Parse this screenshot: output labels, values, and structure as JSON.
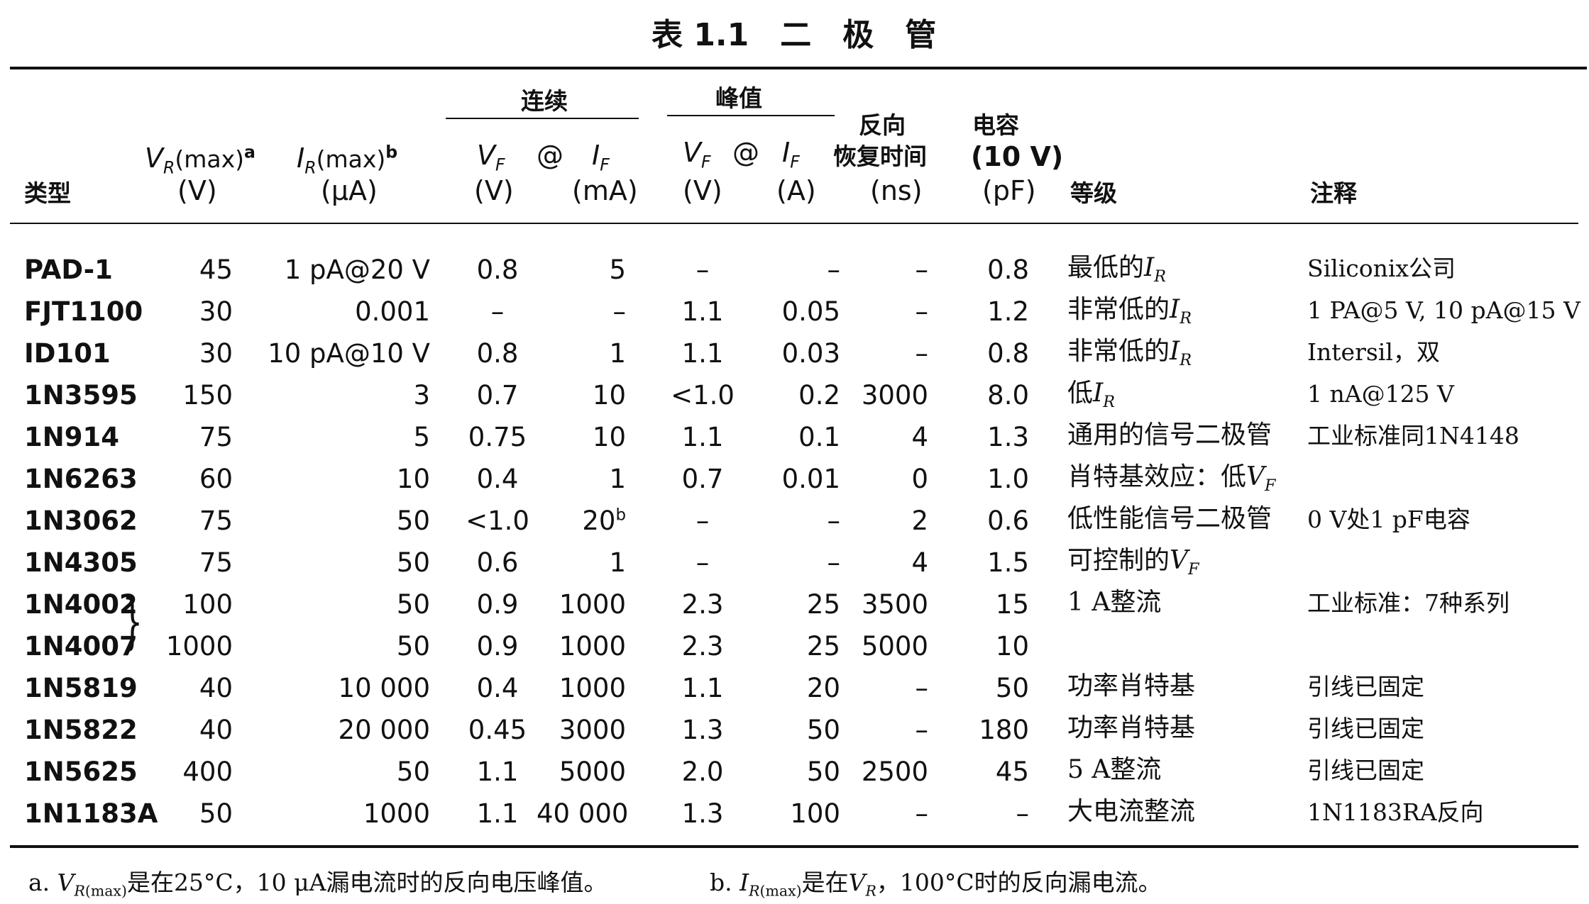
{
  "title": "表 1.1　二　极　管",
  "group_headers": {
    "continuous": "连续",
    "peak": "峰值"
  },
  "col_headers": {
    "type": "类型",
    "vr_unit": "(V)",
    "ir_unit": "(μA)",
    "vf_unit": "(V)",
    "if_unit": "(mA)",
    "at": "@",
    "pk_vf_unit": "(V)",
    "pk_if_unit": "(A)",
    "trr_line1": "反向",
    "trr_line2": "恢复时间",
    "trr_unit": "(ns)",
    "cap_line1": "电容",
    "cap_line2": "(10 V)",
    "cap_unit": "(pF)",
    "grade": "等级",
    "notes": "注释"
  },
  "rows": [
    {
      "type": "PAD-1",
      "vr": "45",
      "ir": "1 pA@20 V",
      "vf": "0.8",
      "if": "5",
      "pvf": "–",
      "pif": "–",
      "trr": "–",
      "cap": "0.8",
      "grade": "最低的I",
      "grade_sub": "R",
      "note": "Siliconix公司"
    },
    {
      "type": "FJT1100",
      "vr": "30",
      "ir": "0.001",
      "vf": "–",
      "if": "–",
      "pvf": "1.1",
      "pif": "0.05",
      "trr": "–",
      "cap": "1.2",
      "grade": "非常低的I",
      "grade_sub": "R",
      "note": "1 PA@5 V, 10 pA@15 V"
    },
    {
      "type": "ID101",
      "vr": "30",
      "ir": "10 pA@10 V",
      "vf": "0.8",
      "if": "1",
      "pvf": "1.1",
      "pif": "0.03",
      "trr": "–",
      "cap": "0.8",
      "grade": "非常低的I",
      "grade_sub": "R",
      "note": "Intersil，双"
    },
    {
      "type": "1N3595",
      "vr": "150",
      "ir": "3",
      "vf": "0.7",
      "if": "10",
      "pvf": "<1.0",
      "pif": "0.2",
      "trr": "3000",
      "cap": "8.0",
      "grade": "低I",
      "grade_sub": "R",
      "note": "1 nA@125 V"
    },
    {
      "type": "1N914",
      "vr": "75",
      "ir": "5",
      "vf": "0.75",
      "if": "10",
      "pvf": "1.1",
      "pif": "0.1",
      "trr": "4",
      "cap": "1.3",
      "grade": "通用的信号二极管",
      "grade_sub": "",
      "note": "工业标准同1N4148"
    },
    {
      "type": "1N6263",
      "vr": "60",
      "ir": "10",
      "vf": "0.4",
      "if": "1",
      "pvf": "0.7",
      "pif": "0.01",
      "trr": "0",
      "cap": "1.0",
      "grade": "肖特基效应：低V",
      "grade_sub": "F",
      "note": ""
    },
    {
      "type": "1N3062",
      "vr": "75",
      "ir": "50",
      "vf": "<1.0",
      "if": "20",
      "if_sup": "b",
      "pvf": "–",
      "pif": "–",
      "trr": "2",
      "cap": "0.6",
      "grade": "低性能信号二极管",
      "grade_sub": "",
      "note": "0 V处1 pF电容"
    },
    {
      "type": "1N4305",
      "vr": "75",
      "ir": "50",
      "vf": "0.6",
      "if": "1",
      "pvf": "–",
      "pif": "–",
      "trr": "4",
      "cap": "1.5",
      "grade": "可控制的V",
      "grade_sub": "F",
      "note": ""
    },
    {
      "type": "1N4002",
      "vr": "100",
      "ir": "50",
      "vf": "0.9",
      "if": "1000",
      "pvf": "2.3",
      "pif": "25",
      "trr": "3500",
      "cap": "15",
      "grade": "1 A整流",
      "grade_sub": "",
      "note": "工业标准：7种系列"
    },
    {
      "type": "1N4007",
      "vr": "1000",
      "ir": "50",
      "vf": "0.9",
      "if": "1000",
      "pvf": "2.3",
      "pif": "25",
      "trr": "5000",
      "cap": "10",
      "grade": "",
      "grade_sub": "",
      "note": ""
    },
    {
      "type": "1N5819",
      "vr": "40",
      "ir": "10 000",
      "vf": "0.4",
      "if": "1000",
      "pvf": "1.1",
      "pif": "20",
      "trr": "–",
      "cap": "50",
      "grade": "功率肖特基",
      "grade_sub": "",
      "note": "引线已固定"
    },
    {
      "type": "1N5822",
      "vr": "40",
      "ir": "20 000",
      "vf": "0.45",
      "if": "3000",
      "pvf": "1.3",
      "pif": "50",
      "trr": "–",
      "cap": "180",
      "grade": "功率肖特基",
      "grade_sub": "",
      "note": "引线已固定"
    },
    {
      "type": "1N5625",
      "vr": "400",
      "ir": "50",
      "vf": "1.1",
      "if": "5000",
      "pvf": "2.0",
      "pif": "50",
      "trr": "2500",
      "cap": "45",
      "grade": "5 A整流",
      "grade_sub": "",
      "note": "引线已固定"
    },
    {
      "type": "1N1183A",
      "vr": "50",
      "ir": "1000",
      "vf": "1.1",
      "if": "40 000",
      "pvf": "1.3",
      "pif": "100",
      "trr": "–",
      "cap": "–",
      "grade": "大电流整流",
      "grade_sub": "",
      "note": "1N1183RA反向"
    }
  ],
  "footnotes": {
    "a": "是在25°C，10 μA漏电流时的反向电压峰值。",
    "b_mid": "是在",
    "b_end": "，100°C时的反向漏电流。"
  }
}
